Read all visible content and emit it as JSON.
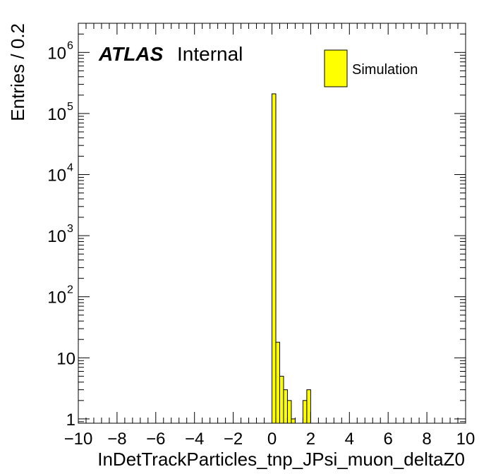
{
  "chart_data": {
    "type": "bar",
    "style": "histogram",
    "xlabel": "InDetTrackParticles_tnp_JPsi_muon_deltaZ0",
    "ylabel": "Entries / 0.2",
    "xlim": [
      -10,
      10
    ],
    "ylim": [
      0.85,
      3000000
    ],
    "yscale": "log",
    "bin_width": 0.2,
    "x_ticks": [
      "−10",
      "−8",
      "−6",
      "−4",
      "−2",
      "0",
      "2",
      "4",
      "6",
      "8",
      "10"
    ],
    "y_ticks": [
      {
        "base": "1",
        "exp": ""
      },
      {
        "base": "10",
        "exp": ""
      },
      {
        "base": "10",
        "exp": "2"
      },
      {
        "base": "10",
        "exp": "3"
      },
      {
        "base": "10",
        "exp": "4"
      },
      {
        "base": "10",
        "exp": "5"
      },
      {
        "base": "10",
        "exp": "6"
      }
    ],
    "series": [
      {
        "name": "Simulation",
        "color": "#ffff00",
        "bins": [
          {
            "x": 0.0,
            "value": 210000
          },
          {
            "x": 0.2,
            "value": 18
          },
          {
            "x": 0.4,
            "value": 5
          },
          {
            "x": 0.6,
            "value": 3
          },
          {
            "x": 0.8,
            "value": 2
          },
          {
            "x": 1.0,
            "value": 1
          },
          {
            "x": 1.6,
            "value": 2
          },
          {
            "x": 1.8,
            "value": 3
          }
        ]
      }
    ],
    "legend": {
      "position": "top-right",
      "entries": [
        "Simulation"
      ]
    },
    "annotations": {
      "experiment": "ATLAS",
      "status": "Internal"
    },
    "grid": false
  }
}
